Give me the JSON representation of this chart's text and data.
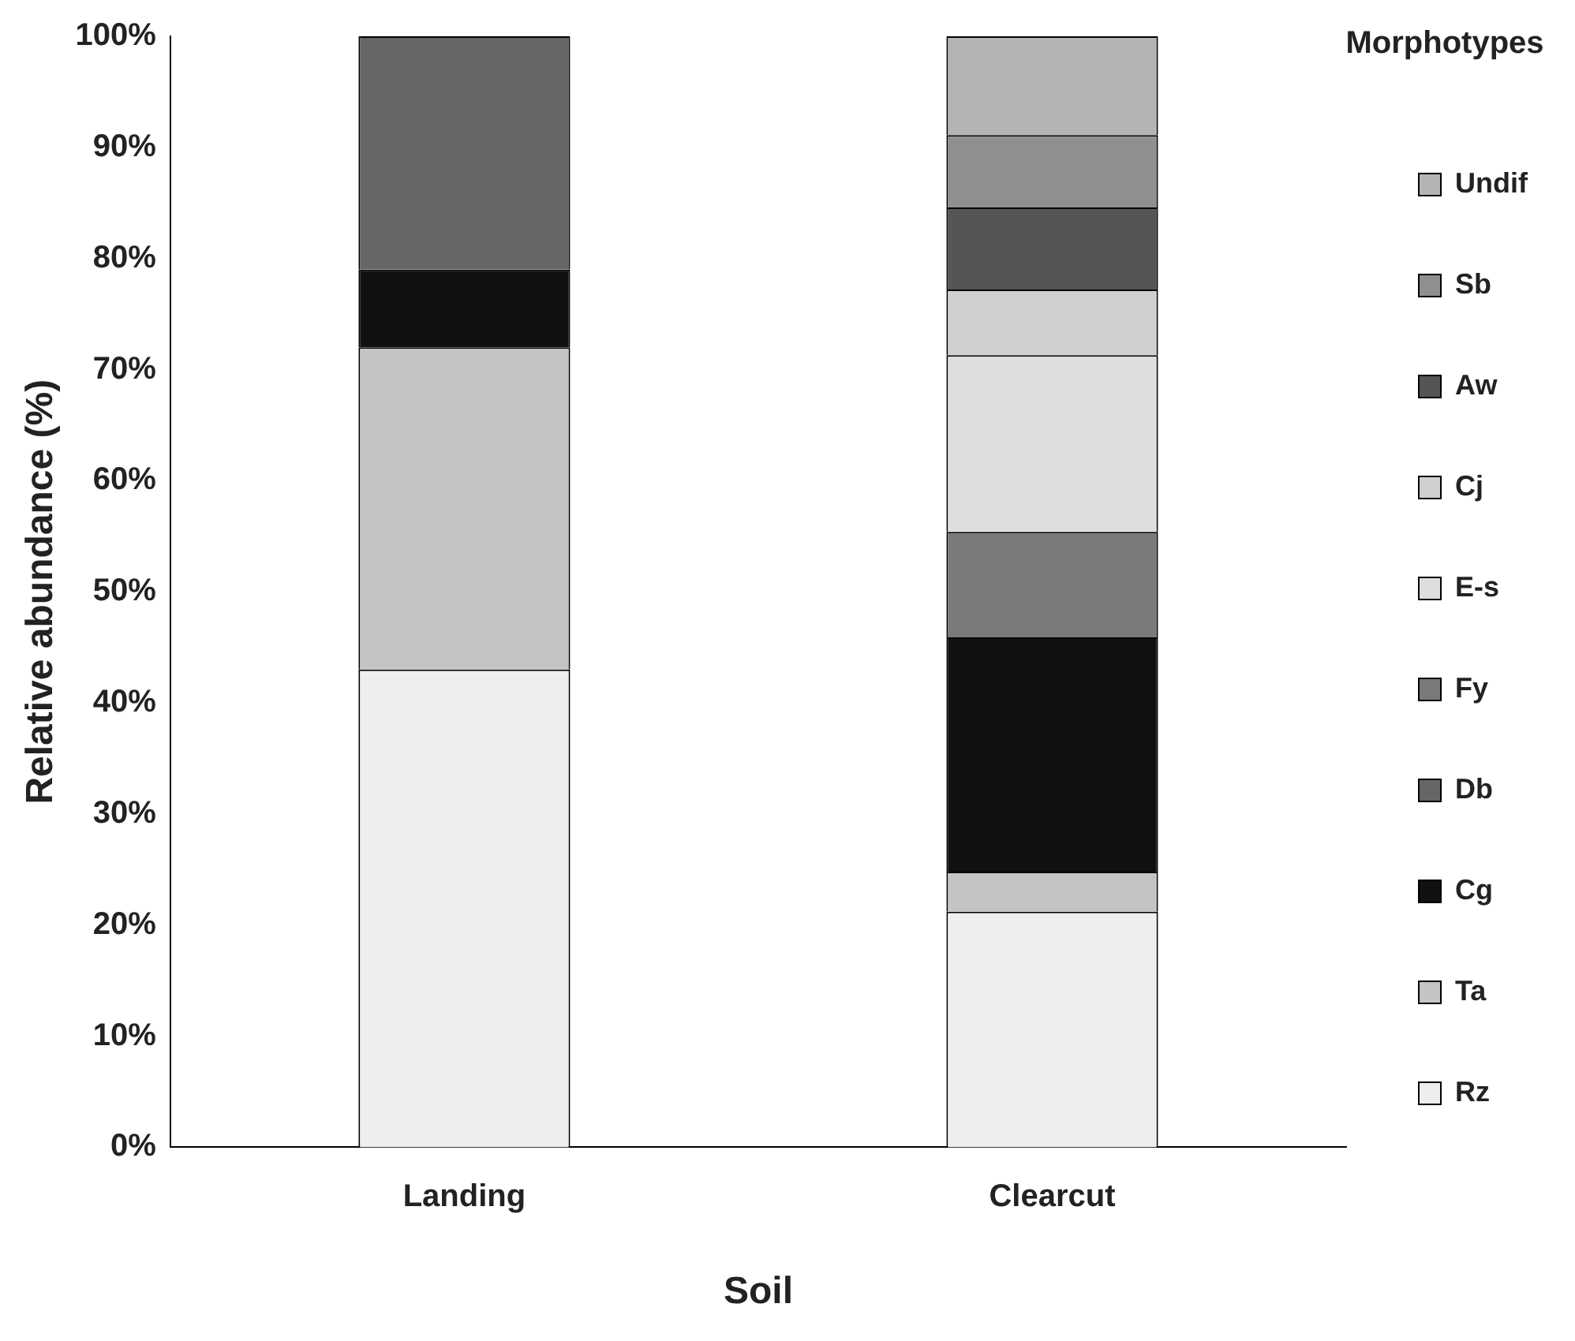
{
  "chart_data": {
    "type": "bar",
    "stacked": true,
    "xlabel": "Soil",
    "ylabel": "Relative abundance (%)",
    "legend_title": "Morphotypes",
    "legend": "right",
    "grid": false,
    "categories": [
      "Landing",
      "Clearcut"
    ],
    "ylim": [
      0,
      100
    ],
    "yticks": [
      {
        "value": 0,
        "label": "0%"
      },
      {
        "value": 10,
        "label": "10%"
      },
      {
        "value": 20,
        "label": "20%"
      },
      {
        "value": 30,
        "label": "30%"
      },
      {
        "value": 40,
        "label": "40%"
      },
      {
        "value": 50,
        "label": "50%"
      },
      {
        "value": 60,
        "label": "60%"
      },
      {
        "value": 70,
        "label": "70%"
      },
      {
        "value": 80,
        "label": "80%"
      },
      {
        "value": 90,
        "label": "90%"
      },
      {
        "value": 100,
        "label": "100%"
      }
    ],
    "series": [
      {
        "name": "Rz",
        "color": "#eeeeee",
        "values": [
          43,
          21.2
        ]
      },
      {
        "name": "Ta",
        "color": "#c4c4c4",
        "values": [
          29,
          3.6
        ]
      },
      {
        "name": "Cg",
        "color": "#111111",
        "values": [
          7,
          21.1
        ]
      },
      {
        "name": "Db",
        "color": "#666666",
        "values": [
          21,
          0
        ]
      },
      {
        "name": "Fy",
        "color": "#7a7a7a",
        "values": [
          0,
          9.5
        ]
      },
      {
        "name": "E-s",
        "color": "#dedede",
        "values": [
          0,
          15.9
        ]
      },
      {
        "name": "Cj",
        "color": "#d0d0d0",
        "values": [
          0,
          5.9
        ]
      },
      {
        "name": "Aw",
        "color": "#555555",
        "values": [
          0,
          7.4
        ]
      },
      {
        "name": "Sb",
        "color": "#8f8f8f",
        "values": [
          0,
          6.5
        ]
      },
      {
        "name": "Undif",
        "color": "#b4b4b4",
        "values": [
          0,
          8.9
        ]
      }
    ]
  }
}
